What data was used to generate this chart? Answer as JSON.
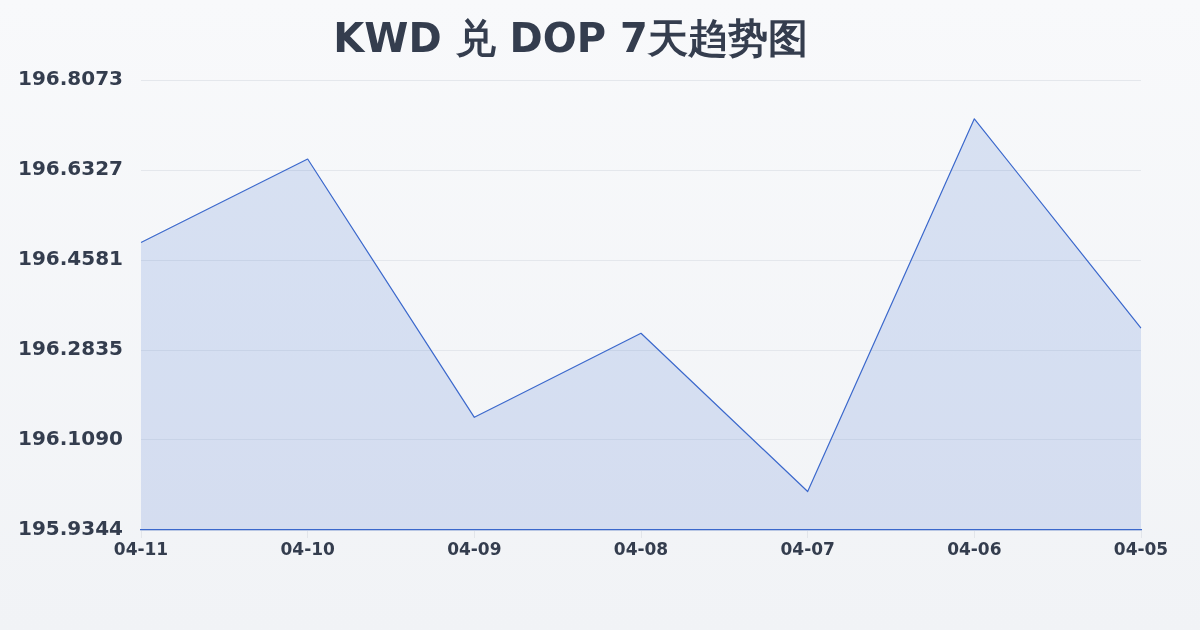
{
  "chart_data": {
    "type": "area",
    "title": "KWD 兑 DOP 7天趋势图",
    "categories": [
      "04-11",
      "04-10",
      "04-09",
      "04-08",
      "04-07",
      "04-06",
      "04-05"
    ],
    "values": [
      196.492,
      196.654,
      196.153,
      196.316,
      196.009,
      196.732,
      196.326
    ],
    "color": "#3b68cc",
    "ylim": [
      195.9344,
      196.8073
    ],
    "yticks": [
      195.9344,
      {
        "value": 196.109,
        "label": "196.1090"
      },
      196.2835,
      196.4581,
      196.6327,
      196.8073
    ],
    "grid": "y"
  }
}
